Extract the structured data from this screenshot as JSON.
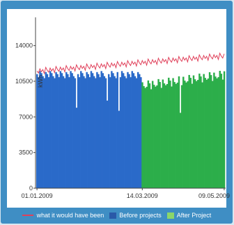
{
  "chart_data": {
    "type": "bar",
    "ylabel": "kWh",
    "yticks": [
      0,
      3500,
      7000,
      10500,
      14000
    ],
    "ylim": [
      0,
      16500
    ],
    "x_tick_labels": [
      "01.01.2009",
      "14.03.2009",
      "09.05.2009"
    ],
    "x_tick_positions": [
      0,
      72,
      128
    ],
    "n_days": 129,
    "split_index": 72,
    "grid": false,
    "legend_position": "bottom",
    "series": [
      {
        "key": "counterfactual",
        "name": "what it would have been",
        "kind": "line",
        "color": "#e0405a"
      },
      {
        "key": "before",
        "name": "Before projects",
        "kind": "bar",
        "color": "#2a6ac9"
      },
      {
        "key": "after",
        "name": "After Project",
        "kind": "bar",
        "color": "#2cae4a"
      }
    ],
    "pattern_before": [
      11200,
      10900,
      11500,
      11300,
      11000,
      10800,
      11400
    ],
    "pattern_after": [
      10200,
      9600,
      10400,
      10000,
      9800,
      9900,
      10500
    ],
    "pattern_counterfactual": [
      11500,
      11300,
      11700,
      11400,
      11600,
      11200,
      11800
    ],
    "drops": [
      {
        "index": 27,
        "value": 7900
      },
      {
        "index": 48,
        "value": 8600
      },
      {
        "index": 56,
        "value": 7600
      },
      {
        "index": 98,
        "value": 7400
      }
    ],
    "counterfactual_trend_end": 1500,
    "after_trend_end": 1100
  }
}
